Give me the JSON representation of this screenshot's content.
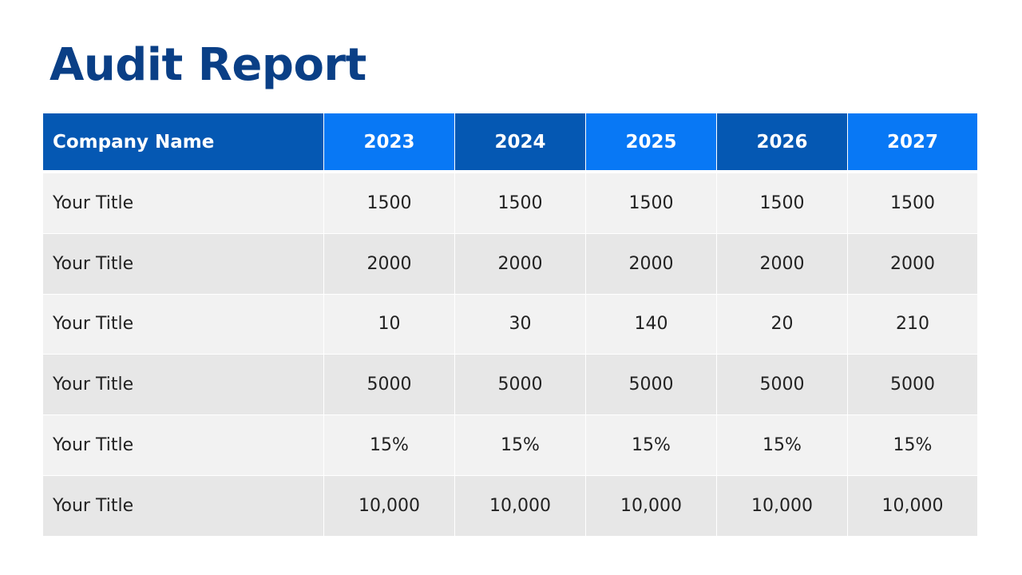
{
  "title": "Audit Report",
  "table": {
    "header_label": "Company Name",
    "years": [
      "2023",
      "2024",
      "2025",
      "2026",
      "2027"
    ],
    "rows": [
      {
        "label": "Your Title",
        "values": [
          "1500",
          "1500",
          "1500",
          "1500",
          "1500"
        ]
      },
      {
        "label": "Your Title",
        "values": [
          "2000",
          "2000",
          "2000",
          "2000",
          "2000"
        ]
      },
      {
        "label": "Your Title",
        "values": [
          "10",
          "30",
          "140",
          "20",
          "210"
        ]
      },
      {
        "label": "Your Title",
        "values": [
          "5000",
          "5000",
          "5000",
          "5000",
          "5000"
        ]
      },
      {
        "label": "Your Title",
        "values": [
          "15%",
          "15%",
          "15%",
          "15%",
          "15%"
        ]
      },
      {
        "label": "Your Title",
        "values": [
          "10,000",
          "10,000",
          "10,000",
          "10,000",
          "10,000"
        ]
      }
    ]
  },
  "colors": {
    "title": "#0a3f86",
    "header_dark": "#0558b3",
    "header_light": "#0878f5",
    "row_light": "#f2f2f2",
    "row_dark": "#e7e7e7"
  }
}
